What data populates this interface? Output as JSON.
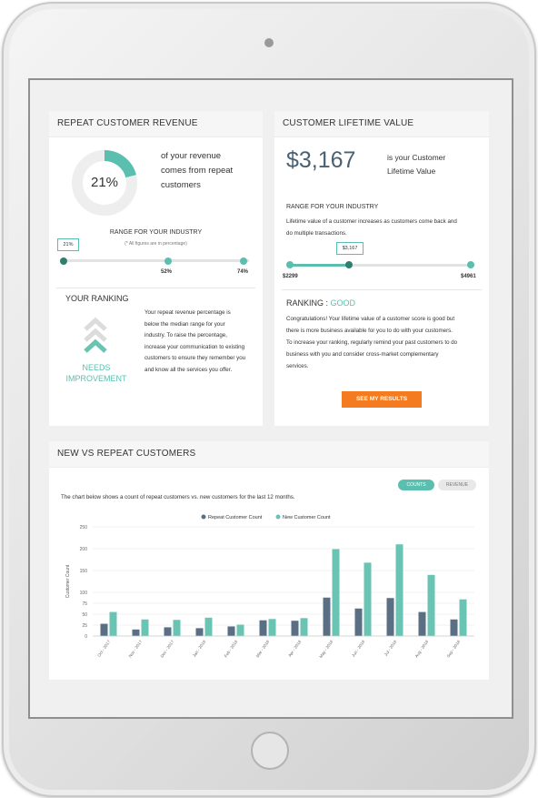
{
  "repeat_revenue": {
    "title": "REPEAT CUSTOMER REVENUE",
    "percent_label": "21%",
    "percent_value": 21,
    "description": [
      "of your revenue",
      "comes from repeat",
      "customers"
    ],
    "range_title": "RANGE FOR YOUR INDUSTRY",
    "range_note": "(* All figures are in percentage)",
    "marker_label": "21%",
    "range_mid_label": "52%",
    "range_max_label": "74%",
    "ranking_title": "YOUR RANKING",
    "ranking_status": [
      "NEEDS",
      "IMPROVEMENT"
    ],
    "ranking_text": [
      "Your repeat revenue percentage is",
      "below the median range for your",
      "industry. To raise the percentage,",
      "increase your communication to existing",
      "customers to ensure they remember you",
      "and know all the services you offer."
    ],
    "colors": {
      "accent": "#5bbfb0",
      "track": "#e6e6e6"
    }
  },
  "clv": {
    "title": "CUSTOMER LIFETIME VALUE",
    "value": "$3,167",
    "description": [
      "is your Customer",
      "Lifetime Value"
    ],
    "range_title": "RANGE FOR YOUR INDUSTRY",
    "range_text": [
      "Lifetime value of a customer increases as customers come back and",
      "do multiple transactions."
    ],
    "marker_label": "$3,167",
    "range_min": "$2299",
    "range_max": "$4961",
    "ranking_prefix": "RANKING : ",
    "ranking_value": "GOOD",
    "ranking_text": [
      "Congratulations! Your lifetime value of a customer score is good but",
      "there is more business available for you to do with your customers.",
      "To increase your ranking, regularly remind your past customers to do",
      "business with you and consider cross-market complementary",
      "services."
    ],
    "button_label": "SEE MY RESULTS"
  },
  "new_vs_repeat": {
    "title": "NEW VS REPEAT CUSTOMERS",
    "toggle_counts": "COUNTS",
    "toggle_revenue": "REVENUE",
    "subtitle": "The chart below shows a count of repeat customers vs. new customers for the last 12 months."
  },
  "chart_data": {
    "type": "bar",
    "categories": [
      "Oct - 2017",
      "Nov - 2017",
      "Dec - 2017",
      "Jan - 2018",
      "Feb - 2018",
      "Mar - 2018",
      "Apr - 2018",
      "May - 2018",
      "Jun - 2018",
      "Jul - 2018",
      "Aug - 2018",
      "Sep - 2018"
    ],
    "series": [
      {
        "name": "Repeat Customer Count",
        "color": "#5a6f84",
        "values": [
          28,
          15,
          20,
          18,
          22,
          36,
          35,
          88,
          63,
          87,
          55,
          38
        ]
      },
      {
        "name": "New Customer Count",
        "color": "#6ac4b3",
        "values": [
          55,
          38,
          37,
          42,
          26,
          39,
          41,
          199,
          168,
          210,
          140,
          84
        ]
      }
    ],
    "ylabel": "Customer Count",
    "xlabel": "",
    "yticks": [
      0,
      25,
      50,
      75,
      100,
      150,
      200,
      250
    ],
    "ylim": [
      0,
      250
    ],
    "legend_position": "top-center",
    "grid": true
  }
}
